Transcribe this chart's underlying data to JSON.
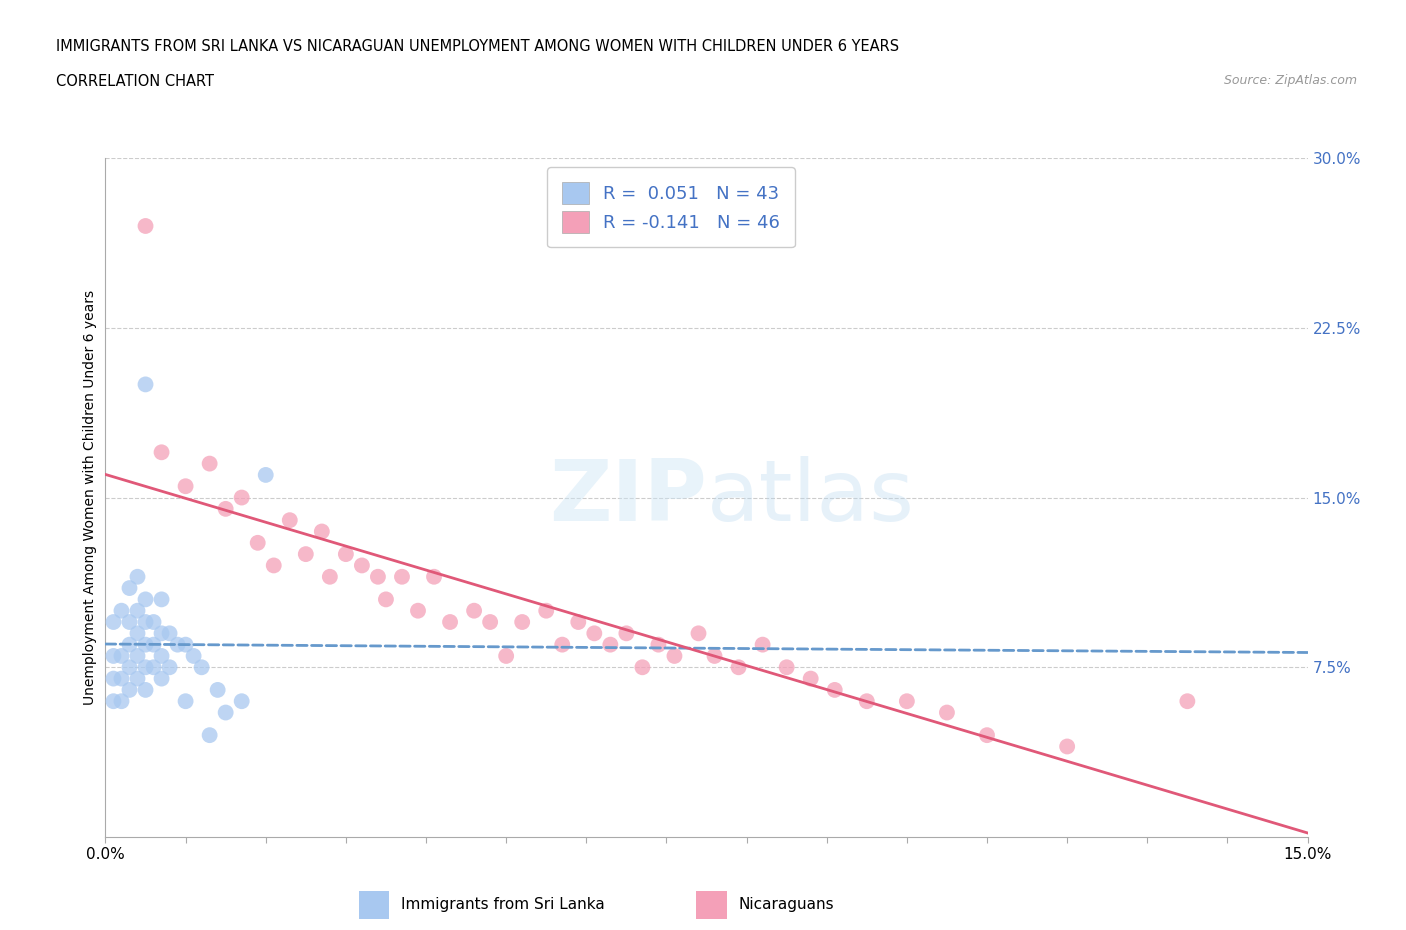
{
  "title_line1": "IMMIGRANTS FROM SRI LANKA VS NICARAGUAN UNEMPLOYMENT AMONG WOMEN WITH CHILDREN UNDER 6 YEARS",
  "title_line2": "CORRELATION CHART",
  "source_text": "Source: ZipAtlas.com",
  "ylabel": "Unemployment Among Women with Children Under 6 years",
  "legend_label1": "Immigrants from Sri Lanka",
  "legend_label2": "Nicaraguans",
  "r1": 0.051,
  "n1": 43,
  "r2": -0.141,
  "n2": 46,
  "color_blue": "#A8C8F0",
  "color_pink": "#F4A0B8",
  "line_color_blue": "#6699CC",
  "line_color_pink": "#E05878",
  "xmin": 0.0,
  "xmax": 0.15,
  "ymin": 0.0,
  "ymax": 0.3,
  "sri_lanka_x": [
    0.001,
    0.001,
    0.001,
    0.001,
    0.002,
    0.002,
    0.002,
    0.002,
    0.003,
    0.003,
    0.003,
    0.003,
    0.003,
    0.004,
    0.004,
    0.004,
    0.004,
    0.004,
    0.005,
    0.005,
    0.005,
    0.005,
    0.005,
    0.005,
    0.006,
    0.006,
    0.006,
    0.007,
    0.007,
    0.007,
    0.007,
    0.008,
    0.008,
    0.009,
    0.01,
    0.01,
    0.011,
    0.012,
    0.013,
    0.014,
    0.015,
    0.017,
    0.02
  ],
  "sri_lanka_y": [
    0.06,
    0.07,
    0.08,
    0.095,
    0.06,
    0.07,
    0.08,
    0.1,
    0.065,
    0.075,
    0.085,
    0.095,
    0.11,
    0.07,
    0.08,
    0.09,
    0.1,
    0.115,
    0.065,
    0.075,
    0.085,
    0.095,
    0.105,
    0.2,
    0.075,
    0.085,
    0.095,
    0.07,
    0.08,
    0.09,
    0.105,
    0.075,
    0.09,
    0.085,
    0.06,
    0.085,
    0.08,
    0.075,
    0.045,
    0.065,
    0.055,
    0.06,
    0.16
  ],
  "nicaraguan_x": [
    0.005,
    0.007,
    0.01,
    0.013,
    0.015,
    0.017,
    0.019,
    0.021,
    0.023,
    0.025,
    0.027,
    0.028,
    0.03,
    0.032,
    0.034,
    0.035,
    0.037,
    0.039,
    0.041,
    0.043,
    0.046,
    0.048,
    0.05,
    0.052,
    0.055,
    0.057,
    0.059,
    0.061,
    0.063,
    0.065,
    0.067,
    0.069,
    0.071,
    0.074,
    0.076,
    0.079,
    0.082,
    0.085,
    0.088,
    0.091,
    0.095,
    0.1,
    0.105,
    0.11,
    0.12,
    0.135
  ],
  "nicaraguan_y": [
    0.27,
    0.17,
    0.155,
    0.165,
    0.145,
    0.15,
    0.13,
    0.12,
    0.14,
    0.125,
    0.135,
    0.115,
    0.125,
    0.12,
    0.115,
    0.105,
    0.115,
    0.1,
    0.115,
    0.095,
    0.1,
    0.095,
    0.08,
    0.095,
    0.1,
    0.085,
    0.095,
    0.09,
    0.085,
    0.09,
    0.075,
    0.085,
    0.08,
    0.09,
    0.08,
    0.075,
    0.085,
    0.075,
    0.07,
    0.065,
    0.06,
    0.06,
    0.055,
    0.045,
    0.04,
    0.06
  ]
}
